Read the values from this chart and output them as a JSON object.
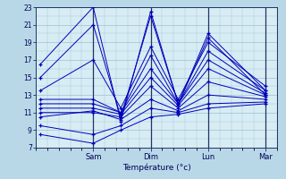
{
  "xlabel": "Température (°c)",
  "ylim": [
    7,
    23
  ],
  "yticks": [
    7,
    9,
    11,
    13,
    15,
    17,
    19,
    21,
    23
  ],
  "bg_outer": "#b8d8e8",
  "bg_plot": "#d8ecf4",
  "grid_color": "#8ab8cc",
  "line_color": "#0000bb",
  "day_labels": [
    "Sam",
    "Dim",
    "Lun",
    "Mar"
  ],
  "lines_xy": [
    [
      [
        0.02,
        16.5
      ],
      [
        0.25,
        23.0
      ],
      [
        0.37,
        10.0
      ],
      [
        0.5,
        22.5
      ],
      [
        0.62,
        12.0
      ],
      [
        0.75,
        20.0
      ],
      [
        1.0,
        13.5
      ]
    ],
    [
      [
        0.02,
        15.0
      ],
      [
        0.25,
        21.0
      ],
      [
        0.37,
        10.5
      ],
      [
        0.5,
        22.0
      ],
      [
        0.62,
        12.0
      ],
      [
        0.75,
        19.5
      ],
      [
        1.0,
        13.0
      ]
    ],
    [
      [
        0.02,
        13.5
      ],
      [
        0.25,
        17.0
      ],
      [
        0.37,
        11.5
      ],
      [
        0.5,
        18.5
      ],
      [
        0.62,
        12.5
      ],
      [
        0.75,
        19.0
      ],
      [
        1.0,
        14.0
      ]
    ],
    [
      [
        0.02,
        12.5
      ],
      [
        0.25,
        12.5
      ],
      [
        0.37,
        11.0
      ],
      [
        0.5,
        17.5
      ],
      [
        0.62,
        12.0
      ],
      [
        0.75,
        18.0
      ],
      [
        1.0,
        13.5
      ]
    ],
    [
      [
        0.02,
        12.0
      ],
      [
        0.25,
        12.0
      ],
      [
        0.37,
        11.0
      ],
      [
        0.5,
        16.0
      ],
      [
        0.62,
        12.0
      ],
      [
        0.75,
        17.0
      ],
      [
        1.0,
        13.2
      ]
    ],
    [
      [
        0.02,
        11.5
      ],
      [
        0.25,
        11.5
      ],
      [
        0.37,
        10.8
      ],
      [
        0.5,
        15.0
      ],
      [
        0.62,
        11.8
      ],
      [
        0.75,
        16.0
      ],
      [
        1.0,
        13.0
      ]
    ],
    [
      [
        0.02,
        11.0
      ],
      [
        0.25,
        11.0
      ],
      [
        0.37,
        10.5
      ],
      [
        0.5,
        14.0
      ],
      [
        0.62,
        11.5
      ],
      [
        0.75,
        14.5
      ],
      [
        1.0,
        12.8
      ]
    ],
    [
      [
        0.02,
        10.5
      ],
      [
        0.25,
        11.2
      ],
      [
        0.37,
        10.2
      ],
      [
        0.5,
        12.5
      ],
      [
        0.62,
        11.2
      ],
      [
        0.75,
        13.0
      ],
      [
        1.0,
        12.5
      ]
    ],
    [
      [
        0.02,
        9.5
      ],
      [
        0.25,
        8.5
      ],
      [
        0.37,
        9.5
      ],
      [
        0.5,
        11.5
      ],
      [
        0.62,
        11.0
      ],
      [
        0.75,
        12.0
      ],
      [
        1.0,
        12.2
      ]
    ],
    [
      [
        0.02,
        8.5
      ],
      [
        0.25,
        7.5
      ],
      [
        0.37,
        9.0
      ],
      [
        0.5,
        10.5
      ],
      [
        0.62,
        10.8
      ],
      [
        0.75,
        11.5
      ],
      [
        1.0,
        12.0
      ]
    ]
  ]
}
